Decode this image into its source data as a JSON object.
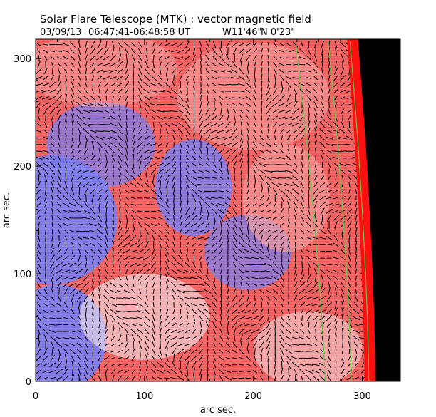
{
  "chart_data": {
    "type": "heatmap",
    "title": "Solar Flare Telescope (MTK) : vector magnetic field",
    "subtitle": {
      "date": "03/09/13",
      "time_range": "06:47:41-06:48:58 UT",
      "longitude": "W11'46\"",
      "latitude": "N 0'23\""
    },
    "xlabel": "arc sec.",
    "ylabel": "arc sec.",
    "xlim": [
      0,
      335
    ],
    "ylim": [
      0,
      318
    ],
    "xticks": [
      0,
      100,
      200,
      300
    ],
    "yticks": [
      0,
      100,
      200,
      300
    ],
    "limb_x_at_y0": 312,
    "limb_x_at_ymax": 296,
    "contour_x_offsets": [
      -46,
      -22,
      -6
    ],
    "colors": {
      "positive": "#f25a5a",
      "negative": "#7777ee",
      "weak": "#f4e6ea",
      "limb": "#ff1010",
      "space": "#000000",
      "contour": "#6fc24a",
      "vector": "#000000"
    },
    "blobs": [
      {
        "x": 20,
        "y": 40,
        "rx": 45,
        "ry": 50,
        "v": -1.0
      },
      {
        "x": 15,
        "y": 150,
        "rx": 60,
        "ry": 60,
        "v": -0.7
      },
      {
        "x": 60,
        "y": 220,
        "rx": 50,
        "ry": 40,
        "v": -0.5
      },
      {
        "x": 145,
        "y": 180,
        "rx": 35,
        "ry": 45,
        "v": -0.6
      },
      {
        "x": 195,
        "y": 120,
        "rx": 40,
        "ry": 35,
        "v": -0.5
      },
      {
        "x": 100,
        "y": 60,
        "rx": 60,
        "ry": 40,
        "v": -0.35
      },
      {
        "x": 250,
        "y": 30,
        "rx": 50,
        "ry": 35,
        "v": -0.25
      },
      {
        "x": 200,
        "y": 265,
        "rx": 70,
        "ry": 50,
        "v": 0.35
      },
      {
        "x": 230,
        "y": 170,
        "rx": 40,
        "ry": 50,
        "v": 0.4
      },
      {
        "x": 60,
        "y": 290,
        "rx": 70,
        "ry": 35,
        "v": 0.3
      }
    ]
  }
}
